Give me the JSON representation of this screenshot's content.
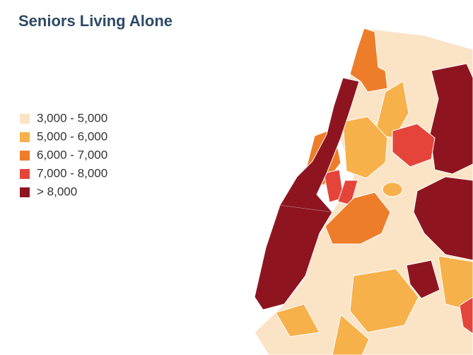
{
  "title": "Seniors Living Alone",
  "legend": [
    {
      "label": "3,000 - 5,000",
      "color": "#fbe3c6"
    },
    {
      "label": "5,000 - 6,000",
      "color": "#f6b14a"
    },
    {
      "label": "6,000 - 7,000",
      "color": "#ee7d2a"
    },
    {
      "label": "7,000 - 8,000",
      "color": "#e5443a"
    },
    {
      "label": "> 8,000",
      "color": "#8e1520"
    }
  ]
}
